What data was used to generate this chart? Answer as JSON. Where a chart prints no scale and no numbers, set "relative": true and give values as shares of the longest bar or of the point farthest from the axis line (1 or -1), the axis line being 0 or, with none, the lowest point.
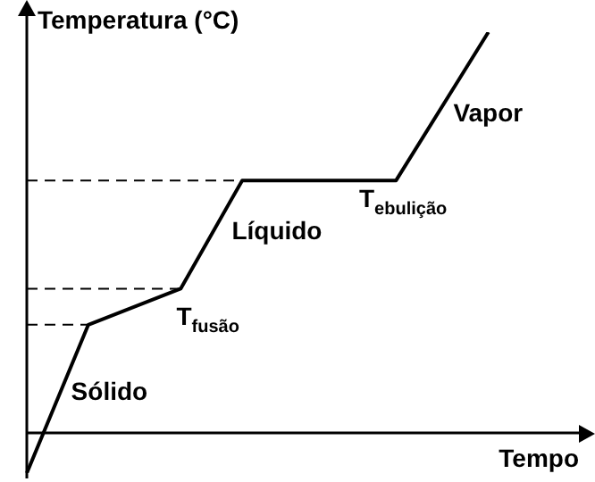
{
  "chart_data": {
    "type": "line",
    "relative": true,
    "xlabel": "Tempo",
    "ylabel": "Temperatura (°C)",
    "categories": [
      null,
      null,
      null,
      null,
      null,
      null,
      null,
      null,
      null,
      null,
      null,
      null,
      null,
      null,
      null,
      null,
      null,
      null,
      null
    ],
    "legend": false,
    "marker": "none",
    "series": [
      {
        "color": "#000000",
        "values": [
          -0.1,
          null,
          0.27,
          null,
          null,
          0.36,
          null,
          0.63,
          null,
          null,
          null,
          null,
          0.63,
          null,
          null,
          1,
          null,
          null,
          null
        ]
      }
    ],
    "ref_lines": [
      {
        "axis": "y",
        "value": 0.27,
        "line_style": "dashed",
        "color": "#000000"
      },
      {
        "axis": "y",
        "value": 0.36,
        "line_style": "dashed",
        "color": "#000000"
      },
      {
        "axis": "y",
        "value": 0.63,
        "line_style": "dashed",
        "color": "#000000"
      }
    ],
    "annotations": [
      "Sólido",
      "T$_{fusão}$",
      "Líquido",
      "T$_{ebulição}$",
      "Vapor"
    ]
  }
}
